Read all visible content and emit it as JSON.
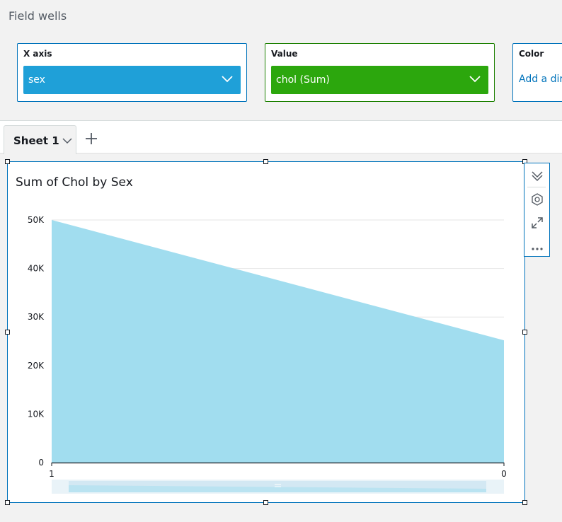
{
  "field_wells": {
    "title": "Field wells",
    "x_axis": {
      "label": "X axis",
      "value": "sex",
      "color": "#1fa0d8"
    },
    "value": {
      "label": "Value",
      "value": "chol (Sum)",
      "color": "#2ca70d"
    },
    "color": {
      "label": "Color",
      "placeholder": "Add a dir"
    }
  },
  "sheets": {
    "tabs": [
      {
        "label": "Sheet 1"
      }
    ],
    "add_icon": "plus-icon"
  },
  "visual": {
    "title": "Sum of Chol by Sex",
    "toolbar": [
      "collapse-icon",
      "gear-icon",
      "expand-icon",
      "more-icon"
    ]
  },
  "chart_data": {
    "type": "area",
    "title": "Sum of Chol by Sex",
    "categories": [
      "1",
      "0"
    ],
    "series": [
      {
        "name": "chol (Sum)",
        "values": [
          50000,
          25200
        ]
      }
    ],
    "ylim": [
      0,
      50000
    ],
    "yticks": [
      0,
      10000,
      20000,
      30000,
      40000,
      50000
    ],
    "ytick_labels": [
      "0",
      "10K",
      "20K",
      "30K",
      "40K",
      "50K"
    ],
    "xlabel": "",
    "ylabel": "",
    "grid": true,
    "fill_color": "#a1ddef"
  }
}
